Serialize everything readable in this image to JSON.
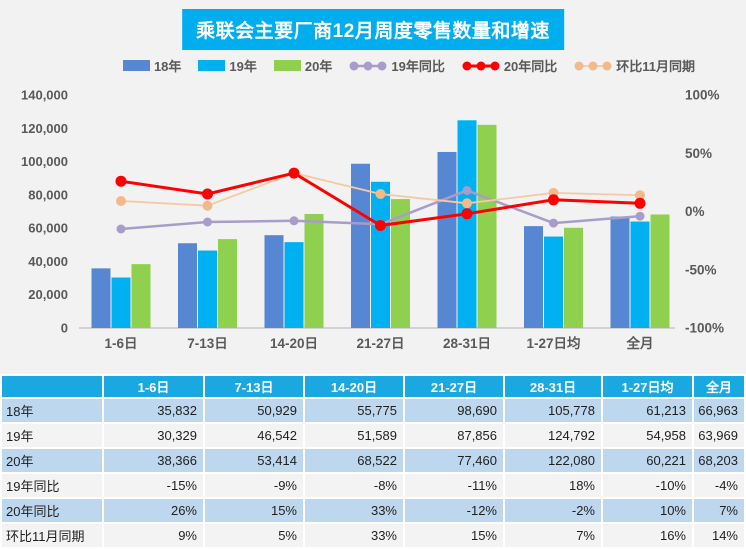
{
  "title": "乘联会主要厂商12月周度零售数量和增速",
  "colors": {
    "title_bg": "#00aeef",
    "table_header_bg": "#1aa8e1",
    "row_blue": "#bdd7ee",
    "row_gray": "#f3f3f3",
    "chart_bg": "#f2f2f2",
    "axis_text": "#595959",
    "axis_line": "#bfbfbf"
  },
  "chart_data": {
    "type": "bar+line combo",
    "categories": [
      "1-6日",
      "7-13日",
      "14-20日",
      "21-27日",
      "28-31日",
      "1-27日均",
      "全月"
    ],
    "bar_series": [
      {
        "name": "18年",
        "color": "#5787d3",
        "values": [
          35832,
          50929,
          55775,
          98690,
          105778,
          61213,
          66963
        ]
      },
      {
        "name": "19年",
        "color": "#00b1f1",
        "values": [
          30329,
          46542,
          51589,
          87856,
          124792,
          54958,
          63969
        ]
      },
      {
        "name": "20年",
        "color": "#8fd04e",
        "values": [
          38366,
          53414,
          68522,
          77460,
          122080,
          60221,
          68203
        ]
      }
    ],
    "line_series": [
      {
        "name": "19年同比",
        "color": "#a89ccb",
        "marker_color": "#a89ccb",
        "width": 2.5,
        "marker_r": 4.5,
        "values": [
          -15,
          -9,
          -8,
          -11,
          18,
          -10,
          -4
        ]
      },
      {
        "name": "环比11月同期",
        "color": "#f7c9a3",
        "marker_color": "#f2ba8b",
        "width": 1.8,
        "marker_r": 5,
        "values": [
          9,
          5,
          33,
          15,
          7,
          16,
          14
        ]
      },
      {
        "name": "20年同比",
        "color": "#fe0000",
        "marker_color": "#fe0000",
        "width": 3,
        "marker_r": 5.5,
        "values": [
          26,
          15,
          33,
          -12,
          -2,
          10,
          7
        ]
      }
    ],
    "legend_order": [
      "18年",
      "19年",
      "20年",
      "19年同比",
      "20年同比",
      "环比11月同期"
    ],
    "left_axis": {
      "min": 0,
      "max": 140000,
      "ticks": [
        {
          "v": 0,
          "label": "0"
        },
        {
          "v": 20000,
          "label": "20,000"
        },
        {
          "v": 40000,
          "label": "40,000"
        },
        {
          "v": 60000,
          "label": "60,000"
        },
        {
          "v": 80000,
          "label": "80,000"
        },
        {
          "v": 100000,
          "label": "100,000"
        },
        {
          "v": 120000,
          "label": "120,000"
        },
        {
          "v": 140000,
          "label": "140,000"
        }
      ]
    },
    "right_axis": {
      "min": -100,
      "max": 100,
      "ticks": [
        {
          "v": 100,
          "label": "100%"
        },
        {
          "v": 50,
          "label": "50%"
        },
        {
          "v": 0,
          "label": "0%"
        },
        {
          "v": -50,
          "label": "-50%"
        },
        {
          "v": -100,
          "label": "-100%"
        }
      ]
    },
    "grid": false,
    "legend_position": "top"
  },
  "table": {
    "headers": [
      "",
      "1-6日",
      "7-13日",
      "14-20日",
      "21-27日",
      "28-31日",
      "1-27日均",
      "全月"
    ],
    "rows": [
      {
        "label": "18年",
        "cells": [
          "35,832",
          "50,929",
          "55,775",
          "98,690",
          "105,778",
          "61,213",
          "66,963"
        ]
      },
      {
        "label": "19年",
        "cells": [
          "30,329",
          "46,542",
          "51,589",
          "87,856",
          "124,792",
          "54,958",
          "63,969"
        ]
      },
      {
        "label": "20年",
        "cells": [
          "38,366",
          "53,414",
          "68,522",
          "77,460",
          "122,080",
          "60,221",
          "68,203"
        ]
      },
      {
        "label": "19年同比",
        "cells": [
          "-15%",
          "-9%",
          "-8%",
          "-11%",
          "18%",
          "-10%",
          "-4%"
        ]
      },
      {
        "label": "20年同比",
        "cells": [
          "26%",
          "15%",
          "33%",
          "-12%",
          "-2%",
          "10%",
          "7%"
        ]
      },
      {
        "label": "环比11月同期",
        "cells": [
          "9%",
          "5%",
          "33%",
          "15%",
          "7%",
          "16%",
          "14%"
        ]
      }
    ]
  }
}
